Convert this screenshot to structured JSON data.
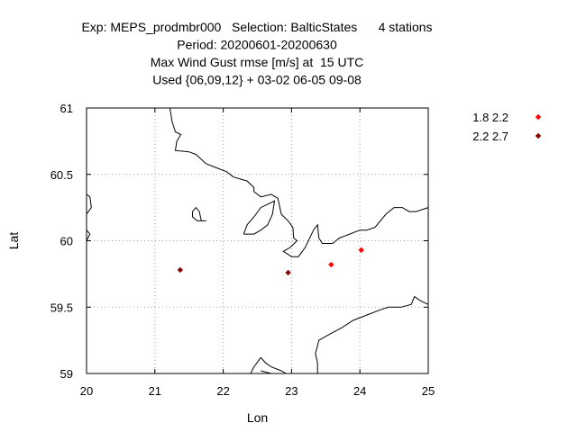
{
  "chart_data": {
    "type": "scatter",
    "title_lines": [
      "Exp: MEPS_prodmbr000   Selection: BalticStates      4 stations",
      "Period: 20200601-20200630",
      "Max Wind Gust rmse [m/s] at  15 UTC",
      "Used {06,09,12} + 03-02 06-05 09-08"
    ],
    "xlabel": "Lon",
    "ylabel": "Lat",
    "xlim": [
      20,
      25
    ],
    "ylim": [
      59,
      61
    ],
    "xticks": [
      20,
      21,
      22,
      23,
      24,
      25
    ],
    "yticks": [
      59,
      59.5,
      60,
      60.5,
      61
    ],
    "xtick_labels": [
      "20",
      "21",
      "22",
      "23",
      "24",
      "25"
    ],
    "ytick_labels": [
      "59",
      "59.5",
      "60",
      "60.5",
      "61"
    ],
    "grid": true,
    "legend_position": "right",
    "series": [
      {
        "name": "1.8 2.2",
        "color": "#ff0000",
        "points": [
          {
            "x": 23.58,
            "y": 59.82
          },
          {
            "x": 24.02,
            "y": 59.93
          }
        ]
      },
      {
        "name": "2.2 2.7",
        "color": "#8b0000",
        "points": [
          {
            "x": 21.37,
            "y": 59.78
          },
          {
            "x": 22.95,
            "y": 59.76
          }
        ]
      }
    ],
    "coastlines": [
      [
        [
          21.22,
          61.0
        ],
        [
          21.25,
          60.9
        ],
        [
          21.3,
          60.82
        ],
        [
          21.38,
          60.8
        ],
        [
          21.32,
          60.75
        ],
        [
          21.3,
          60.68
        ],
        [
          21.5,
          60.67
        ],
        [
          21.6,
          60.65
        ],
        [
          21.75,
          60.58
        ],
        [
          21.9,
          60.55
        ],
        [
          22.05,
          60.52
        ],
        [
          22.15,
          60.48
        ],
        [
          22.35,
          60.45
        ],
        [
          22.45,
          60.4
        ],
        [
          22.45,
          60.37
        ],
        [
          22.55,
          60.33
        ],
        [
          22.7,
          60.35
        ],
        [
          22.8,
          60.32
        ],
        [
          22.85,
          60.2
        ],
        [
          22.95,
          60.15
        ],
        [
          23.02,
          60.1
        ],
        [
          23.03,
          60.02
        ],
        [
          23.08,
          60.0
        ],
        [
          22.98,
          59.95
        ],
        [
          22.88,
          59.92
        ],
        [
          23.0,
          59.88
        ],
        [
          23.1,
          59.88
        ],
        [
          23.2,
          59.95
        ],
        [
          23.32,
          60.08
        ],
        [
          23.38,
          60.12
        ],
        [
          23.4,
          60.02
        ],
        [
          23.45,
          59.98
        ],
        [
          23.6,
          59.98
        ],
        [
          23.7,
          60.02
        ],
        [
          23.85,
          60.05
        ],
        [
          24.0,
          60.08
        ],
        [
          24.1,
          60.08
        ],
        [
          24.22,
          60.1
        ],
        [
          24.38,
          60.2
        ],
        [
          24.5,
          60.25
        ],
        [
          24.62,
          60.25
        ],
        [
          24.72,
          60.22
        ],
        [
          24.82,
          60.22
        ],
        [
          25.0,
          60.25
        ]
      ],
      [
        [
          22.3,
          60.05
        ],
        [
          22.35,
          60.12
        ],
        [
          22.45,
          60.18
        ],
        [
          22.55,
          60.25
        ],
        [
          22.75,
          60.3
        ],
        [
          22.72,
          60.2
        ],
        [
          22.65,
          60.12
        ],
        [
          22.55,
          60.08
        ],
        [
          22.45,
          60.05
        ],
        [
          22.3,
          60.05
        ]
      ],
      [
        [
          21.55,
          60.22
        ],
        [
          21.6,
          60.25
        ],
        [
          21.65,
          60.22
        ],
        [
          21.68,
          60.15
        ],
        [
          21.75,
          60.15
        ],
        [
          21.62,
          60.15
        ],
        [
          21.55,
          60.18
        ],
        [
          21.55,
          60.22
        ]
      ],
      [
        [
          20.0,
          60.35
        ],
        [
          20.05,
          60.33
        ],
        [
          20.07,
          60.25
        ],
        [
          20.0,
          60.2
        ]
      ],
      [
        [
          20.0,
          60.08
        ],
        [
          20.05,
          60.05
        ],
        [
          20.0,
          60.0
        ]
      ],
      [
        [
          22.4,
          59.0
        ],
        [
          22.45,
          59.05
        ],
        [
          22.55,
          59.12
        ],
        [
          22.62,
          59.08
        ],
        [
          22.7,
          59.05
        ],
        [
          22.85,
          59.02
        ],
        [
          22.92,
          59.0
        ]
      ],
      [
        [
          22.55,
          59.02
        ],
        [
          22.7,
          59.0
        ]
      ],
      [
        [
          23.38,
          59.0
        ],
        [
          23.38,
          59.08
        ],
        [
          23.35,
          59.15
        ],
        [
          23.4,
          59.25
        ],
        [
          23.5,
          59.28
        ],
        [
          23.75,
          59.35
        ],
        [
          23.9,
          59.4
        ],
        [
          24.0,
          59.42
        ],
        [
          24.15,
          59.45
        ],
        [
          24.3,
          59.48
        ],
        [
          24.42,
          59.5
        ],
        [
          24.6,
          59.5
        ],
        [
          24.75,
          59.52
        ],
        [
          24.8,
          59.58
        ],
        [
          24.88,
          59.55
        ],
        [
          25.0,
          59.52
        ]
      ]
    ]
  }
}
